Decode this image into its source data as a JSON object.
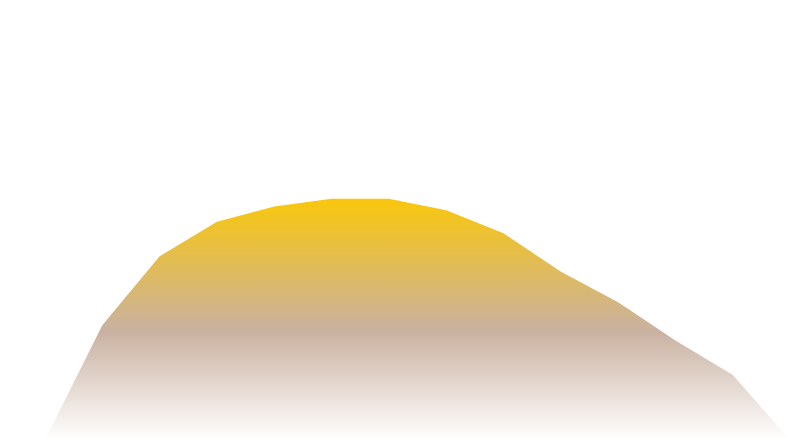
{
  "chart_data": {
    "type": "area",
    "title": "",
    "xlabel": "",
    "ylabel": "",
    "grid": false,
    "legend": "none",
    "x": [
      0,
      1,
      2,
      3,
      4,
      5,
      6,
      7,
      8,
      9,
      10,
      11,
      12,
      13
    ],
    "values": [
      0,
      30,
      48,
      57,
      61,
      63,
      63,
      60,
      54,
      44,
      36,
      26,
      17,
      0
    ],
    "ylim": [
      0,
      64
    ],
    "colors": {
      "top": "#f9c70c",
      "middle": "#c9b1a1",
      "bottom": "#ffffff",
      "background": "#ffffff"
    }
  }
}
